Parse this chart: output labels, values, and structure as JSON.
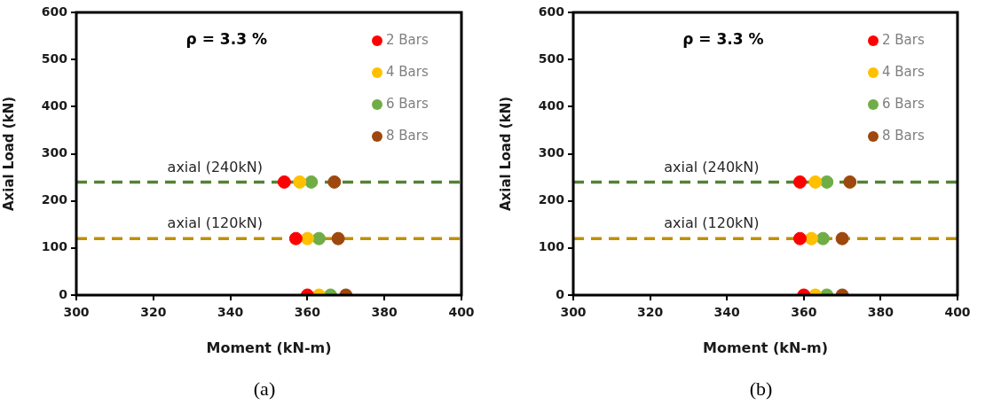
{
  "chart_data": [
    {
      "type": "scatter",
      "xlabel": "Moment (kN-m)",
      "ylabel": "Axial Load (kN)",
      "xlim": [
        300,
        400
      ],
      "xticks": [
        300,
        320,
        340,
        360,
        380,
        400
      ],
      "ylim": [
        0,
        600
      ],
      "yticks": [
        0,
        100,
        200,
        300,
        400,
        500,
        600
      ],
      "grid": false,
      "legend": "top right",
      "marker": "circle",
      "series": [
        {
          "name": "2 Bars",
          "color": "#ff0000",
          "x": [
            354,
            357,
            360
          ],
          "values": [
            240,
            120,
            0
          ]
        },
        {
          "name": "4 Bars",
          "color": "#ffc000",
          "x": [
            358,
            360,
            363
          ],
          "values": [
            240,
            120,
            0
          ]
        },
        {
          "name": "6 Bars",
          "color": "#70ad47",
          "x": [
            361,
            363,
            366
          ],
          "values": [
            240,
            120,
            0
          ]
        },
        {
          "name": "8 Bars",
          "color": "#9e480e",
          "x": [
            367,
            368,
            370
          ],
          "values": [
            240,
            120,
            0
          ]
        }
      ],
      "ref_lines": [
        {
          "axis": "y",
          "value": 240,
          "label": "axial (240kN)",
          "color": "#548235",
          "line_style": "dashed"
        },
        {
          "axis": "y",
          "value": 120,
          "label": "axial (120kN)",
          "color": "#bf9000",
          "line_style": "dashed"
        }
      ],
      "annotations": [
        "ρ = 3.3 %",
        "(a)"
      ]
    },
    {
      "type": "scatter",
      "xlabel": "Moment (kN-m)",
      "ylabel": "Axial Load (kN)",
      "xlim": [
        300,
        400
      ],
      "xticks": [
        300,
        320,
        340,
        360,
        380,
        400
      ],
      "ylim": [
        0,
        600
      ],
      "yticks": [
        0,
        100,
        200,
        300,
        400,
        500,
        600
      ],
      "grid": false,
      "legend": "top right",
      "marker": "circle",
      "series": [
        {
          "name": "2 Bars",
          "color": "#ff0000",
          "x": [
            359,
            359,
            360
          ],
          "values": [
            240,
            120,
            0
          ]
        },
        {
          "name": "4 Bars",
          "color": "#ffc000",
          "x": [
            363,
            362,
            363
          ],
          "values": [
            240,
            120,
            0
          ]
        },
        {
          "name": "6 Bars",
          "color": "#70ad47",
          "x": [
            366,
            365,
            366
          ],
          "values": [
            240,
            120,
            0
          ]
        },
        {
          "name": "8 Bars",
          "color": "#9e480e",
          "x": [
            372,
            370,
            370
          ],
          "values": [
            240,
            120,
            0
          ]
        }
      ],
      "ref_lines": [
        {
          "axis": "y",
          "value": 240,
          "label": "axial (240kN)",
          "color": "#548235",
          "line_style": "dashed"
        },
        {
          "axis": "y",
          "value": 120,
          "label": "axial (120kN)",
          "color": "#bf9000",
          "line_style": "dashed"
        }
      ],
      "annotations": [
        "ρ = 3.3 %",
        "(b)"
      ]
    }
  ]
}
